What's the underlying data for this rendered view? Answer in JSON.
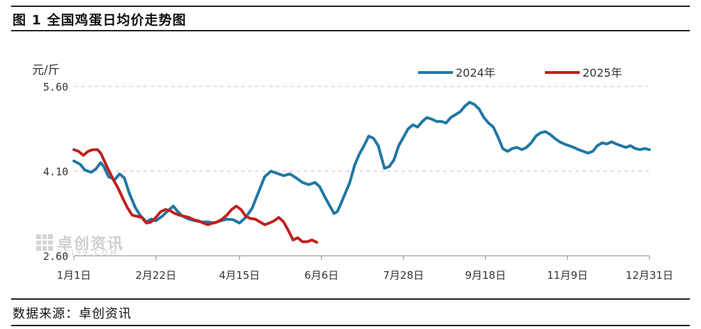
{
  "figure": {
    "title": "图 1  全国鸡蛋日均价走势图",
    "source": "数据来源：卓创资讯",
    "watermark": "卓创资讯",
    "watermark_sub": "SCI99.COM"
  },
  "chart_data": {
    "type": "line",
    "title": "",
    "xlabel": "",
    "ylabel": "元/斤",
    "x_range_days": [
      1,
      366
    ],
    "ylim": [
      2.6,
      5.6
    ],
    "y_ticks": [
      {
        "value": 5.6,
        "label": "5.60"
      },
      {
        "value": 4.1,
        "label": "4.10"
      },
      {
        "value": 2.6,
        "label": "2.60"
      }
    ],
    "x_ticks": [
      {
        "day": 1,
        "label": "1月1日"
      },
      {
        "day": 53,
        "label": "2月22日"
      },
      {
        "day": 106,
        "label": "4月15日"
      },
      {
        "day": 158,
        "label": "6月6日"
      },
      {
        "day": 210,
        "label": "7月28日"
      },
      {
        "day": 262,
        "label": "9月18日"
      },
      {
        "day": 314,
        "label": "11月9日"
      },
      {
        "day": 366,
        "label": "12月31日"
      }
    ],
    "grid": "dashed horizontal at y ticks",
    "legend_position": "top-right",
    "series": [
      {
        "name": "2024年",
        "color": "#1f77a4",
        "points": [
          [
            1,
            4.28
          ],
          [
            5,
            4.22
          ],
          [
            8,
            4.12
          ],
          [
            12,
            4.08
          ],
          [
            15,
            4.14
          ],
          [
            18,
            4.25
          ],
          [
            20,
            4.18
          ],
          [
            23,
            4.0
          ],
          [
            27,
            3.95
          ],
          [
            30,
            4.05
          ],
          [
            33,
            3.98
          ],
          [
            36,
            3.72
          ],
          [
            40,
            3.45
          ],
          [
            43,
            3.32
          ],
          [
            47,
            3.2
          ],
          [
            50,
            3.25
          ],
          [
            53,
            3.22
          ],
          [
            57,
            3.3
          ],
          [
            60,
            3.38
          ],
          [
            64,
            3.48
          ],
          [
            67,
            3.38
          ],
          [
            70,
            3.3
          ],
          [
            74,
            3.25
          ],
          [
            78,
            3.22
          ],
          [
            82,
            3.2
          ],
          [
            86,
            3.2
          ],
          [
            90,
            3.18
          ],
          [
            94,
            3.22
          ],
          [
            98,
            3.25
          ],
          [
            102,
            3.24
          ],
          [
            106,
            3.18
          ],
          [
            110,
            3.28
          ],
          [
            114,
            3.44
          ],
          [
            118,
            3.72
          ],
          [
            122,
            4.0
          ],
          [
            126,
            4.1
          ],
          [
            130,
            4.06
          ],
          [
            134,
            4.02
          ],
          [
            138,
            4.05
          ],
          [
            142,
            3.98
          ],
          [
            146,
            3.9
          ],
          [
            150,
            3.86
          ],
          [
            154,
            3.9
          ],
          [
            157,
            3.82
          ],
          [
            160,
            3.65
          ],
          [
            163,
            3.5
          ],
          [
            166,
            3.35
          ],
          [
            168,
            3.38
          ],
          [
            170,
            3.5
          ],
          [
            173,
            3.7
          ],
          [
            176,
            3.9
          ],
          [
            179,
            4.2
          ],
          [
            182,
            4.4
          ],
          [
            185,
            4.55
          ],
          [
            188,
            4.72
          ],
          [
            191,
            4.68
          ],
          [
            194,
            4.55
          ],
          [
            196,
            4.35
          ],
          [
            198,
            4.15
          ],
          [
            201,
            4.18
          ],
          [
            204,
            4.3
          ],
          [
            207,
            4.55
          ],
          [
            210,
            4.7
          ],
          [
            213,
            4.85
          ],
          [
            216,
            4.92
          ],
          [
            219,
            4.88
          ],
          [
            222,
            4.98
          ],
          [
            225,
            5.05
          ],
          [
            228,
            5.02
          ],
          [
            231,
            4.98
          ],
          [
            234,
            4.98
          ],
          [
            237,
            4.95
          ],
          [
            240,
            5.05
          ],
          [
            243,
            5.1
          ],
          [
            246,
            5.15
          ],
          [
            249,
            5.25
          ],
          [
            252,
            5.32
          ],
          [
            255,
            5.28
          ],
          [
            258,
            5.2
          ],
          [
            261,
            5.05
          ],
          [
            264,
            4.95
          ],
          [
            267,
            4.88
          ],
          [
            270,
            4.7
          ],
          [
            273,
            4.5
          ],
          [
            276,
            4.45
          ],
          [
            279,
            4.5
          ],
          [
            282,
            4.52
          ],
          [
            285,
            4.48
          ],
          [
            288,
            4.52
          ],
          [
            291,
            4.6
          ],
          [
            294,
            4.72
          ],
          [
            297,
            4.78
          ],
          [
            300,
            4.8
          ],
          [
            303,
            4.75
          ],
          [
            306,
            4.68
          ],
          [
            309,
            4.62
          ],
          [
            312,
            4.58
          ],
          [
            315,
            4.55
          ],
          [
            318,
            4.52
          ],
          [
            321,
            4.48
          ],
          [
            324,
            4.45
          ],
          [
            327,
            4.42
          ],
          [
            330,
            4.45
          ],
          [
            333,
            4.55
          ],
          [
            336,
            4.6
          ],
          [
            339,
            4.58
          ],
          [
            342,
            4.62
          ],
          [
            345,
            4.58
          ],
          [
            348,
            4.55
          ],
          [
            351,
            4.52
          ],
          [
            354,
            4.55
          ],
          [
            357,
            4.5
          ],
          [
            360,
            4.48
          ],
          [
            363,
            4.5
          ],
          [
            366,
            4.48
          ]
        ]
      },
      {
        "name": "2025年",
        "color": "#c0201f",
        "points": [
          [
            1,
            4.48
          ],
          [
            4,
            4.45
          ],
          [
            7,
            4.38
          ],
          [
            10,
            4.45
          ],
          [
            13,
            4.48
          ],
          [
            16,
            4.48
          ],
          [
            18,
            4.42
          ],
          [
            20,
            4.3
          ],
          [
            23,
            4.12
          ],
          [
            26,
            3.95
          ],
          [
            29,
            3.8
          ],
          [
            32,
            3.62
          ],
          [
            35,
            3.45
          ],
          [
            38,
            3.32
          ],
          [
            41,
            3.3
          ],
          [
            44,
            3.28
          ],
          [
            47,
            3.18
          ],
          [
            50,
            3.2
          ],
          [
            53,
            3.28
          ],
          [
            56,
            3.38
          ],
          [
            59,
            3.42
          ],
          [
            62,
            3.4
          ],
          [
            65,
            3.35
          ],
          [
            68,
            3.32
          ],
          [
            71,
            3.3
          ],
          [
            74,
            3.28
          ],
          [
            77,
            3.24
          ],
          [
            80,
            3.22
          ],
          [
            83,
            3.18
          ],
          [
            86,
            3.15
          ],
          [
            89,
            3.18
          ],
          [
            92,
            3.2
          ],
          [
            95,
            3.25
          ],
          [
            98,
            3.32
          ],
          [
            101,
            3.42
          ],
          [
            104,
            3.48
          ],
          [
            107,
            3.42
          ],
          [
            110,
            3.3
          ],
          [
            113,
            3.26
          ],
          [
            116,
            3.25
          ],
          [
            119,
            3.2
          ],
          [
            122,
            3.15
          ],
          [
            125,
            3.18
          ],
          [
            128,
            3.22
          ],
          [
            131,
            3.28
          ],
          [
            134,
            3.2
          ],
          [
            137,
            3.05
          ],
          [
            140,
            2.88
          ],
          [
            143,
            2.92
          ],
          [
            146,
            2.85
          ],
          [
            149,
            2.85
          ],
          [
            152,
            2.88
          ],
          [
            155,
            2.84
          ]
        ]
      }
    ]
  }
}
